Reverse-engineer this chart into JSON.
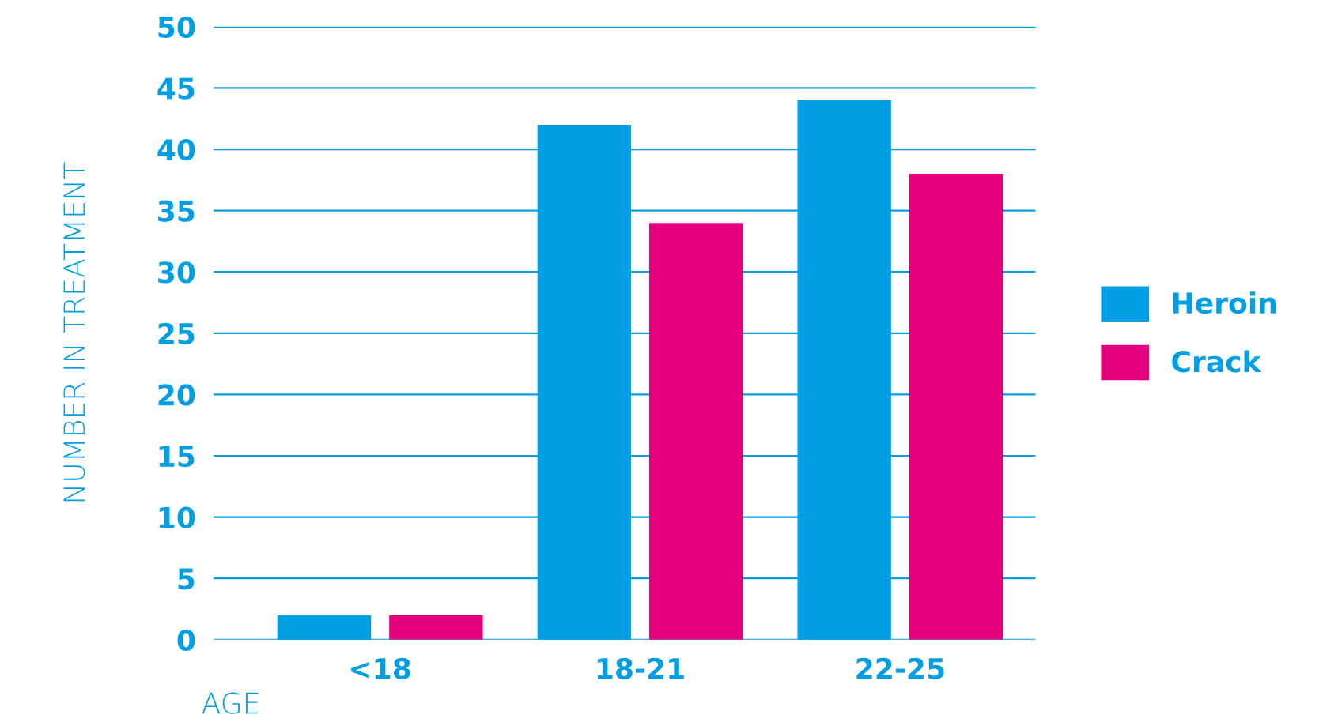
{
  "chart_data": {
    "type": "bar",
    "xlabel": "AGE",
    "ylabel": "NUMBER IN TREATMENT",
    "categories": [
      "<18",
      "18-21",
      "22-25"
    ],
    "series": [
      {
        "name": "Heroin",
        "color": "#009fe3",
        "values": [
          2,
          42,
          44
        ]
      },
      {
        "name": "Crack",
        "color": "#e5007e",
        "values": [
          2,
          34,
          38
        ]
      }
    ],
    "ylim": [
      0,
      50
    ],
    "yticks": [
      0,
      5,
      10,
      15,
      20,
      25,
      30,
      35,
      40,
      45,
      50
    ],
    "grid": "y",
    "legend": "right"
  }
}
